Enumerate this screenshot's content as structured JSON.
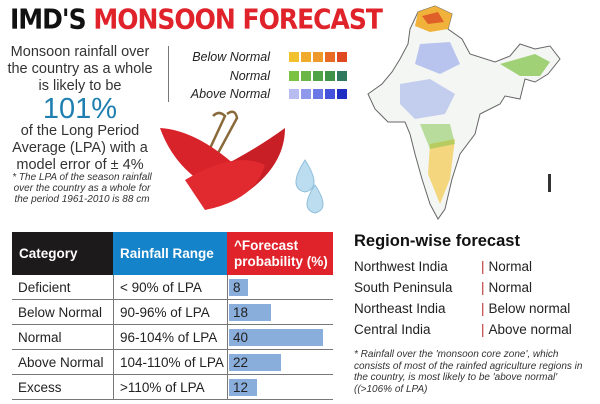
{
  "title": {
    "part1": "IMD'S",
    "part2": "MONSOON FORECAST"
  },
  "intro": {
    "line1": "Monsoon rainfall over the country as a whole is likely to be",
    "value": "101%",
    "line2": "of the Long Period Average (LPA) with a model error of ± 4%",
    "note": "* The LPA of the season rainfall over the country as a whole for the period 1961-2010 is 88 cm"
  },
  "legend": [
    {
      "label": "Below Normal",
      "colors": [
        "#ffffff",
        "#f2c12e",
        "#f0ab2a",
        "#ee9a2a",
        "#e86a25",
        "#e04a22"
      ]
    },
    {
      "label": "Normal",
      "colors": [
        "#ffffff",
        "#7cc242",
        "#6bb646",
        "#4fa448",
        "#3e9348",
        "#2f7a5c"
      ]
    },
    {
      "label": "Above Normal",
      "colors": [
        "#ffffff",
        "#b7bdf0",
        "#8f99ec",
        "#6a77e6",
        "#4452dc",
        "#1f2fc2"
      ]
    }
  ],
  "table": {
    "headers": [
      "Category",
      "Rainfall Range",
      "^Forecast probability (%)"
    ],
    "header_colors": [
      "#1c1a1a",
      "#1583c9",
      "#e0232b"
    ],
    "rows": [
      {
        "category": "Deficient",
        "range": "< 90% of LPA",
        "prob": "8"
      },
      {
        "category": "Below Normal",
        "range": "90-96% of LPA",
        "prob": "18"
      },
      {
        "category": "Normal",
        "range": "96-104% of LPA",
        "prob": "40"
      },
      {
        "category": "Above Normal",
        "range": "104-110% of LPA",
        "prob": "22"
      },
      {
        "category": "Excess",
        "range": ">110% of LPA",
        "prob": "12"
      }
    ]
  },
  "chart_data": {
    "type": "bar",
    "categories": [
      "Deficient",
      "Below Normal",
      "Normal",
      "Above Normal",
      "Excess"
    ],
    "values": [
      8,
      18,
      40,
      22,
      12
    ],
    "ylabel": "^Forecast probability (%)",
    "bar_color": "#8aaedc"
  },
  "region": {
    "title": "Region-wise forecast",
    "rows": [
      {
        "name": "Northwest India",
        "value": "Normal"
      },
      {
        "name": "South Peninsula",
        "value": "Normal"
      },
      {
        "name": "Northeast India",
        "value": "Below normal"
      },
      {
        "name": "Central India",
        "value": "Above normal"
      }
    ],
    "footnote": "* Rainfall over the 'monsoon core zone', which consists of most of the rainfed agriculture regions in the country, is most likely to be 'above normal' ((>106% of LPA)"
  }
}
